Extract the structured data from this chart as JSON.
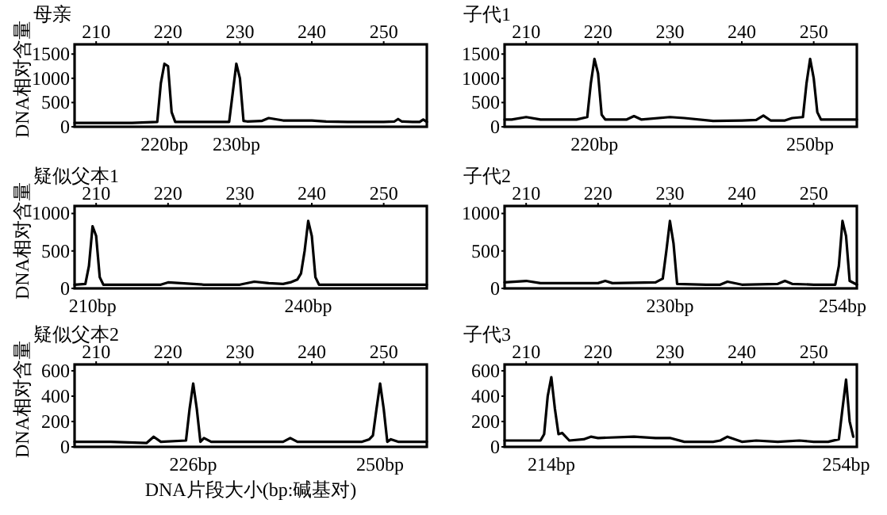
{
  "chart_data": [
    {
      "type": "line",
      "title": "母亲",
      "ylabel": "DNA相对含量",
      "xlim": [
        207,
        256
      ],
      "xticks": [
        210,
        220,
        230,
        240,
        250
      ],
      "ylim": [
        0,
        1700
      ],
      "yticks": [
        0,
        500,
        1000,
        1500
      ],
      "series": [
        {
          "color": "#000000",
          "x": [
            207,
            210,
            215,
            218.5,
            219,
            219.5,
            220,
            220.5,
            221,
            225,
            228.5,
            229,
            229.5,
            230,
            230.5,
            231,
            233,
            234,
            236,
            240,
            242,
            245,
            250,
            251.5,
            252,
            252.5,
            254,
            255,
            255.5,
            256
          ],
          "values": [
            80,
            80,
            80,
            100,
            900,
            1300,
            1250,
            300,
            100,
            100,
            100,
            700,
            1300,
            1000,
            120,
            110,
            120,
            180,
            130,
            130,
            110,
            100,
            100,
            110,
            160,
            110,
            100,
            100,
            150,
            100
          ]
        }
      ],
      "annotations": [
        "220bp",
        "230bp"
      ]
    },
    {
      "type": "line",
      "title": "子代1",
      "xlim": [
        207,
        256
      ],
      "xticks": [
        210,
        220,
        230,
        240,
        250
      ],
      "ylim": [
        0,
        1700
      ],
      "yticks": [
        0,
        500,
        1000,
        1500
      ],
      "series": [
        {
          "color": "#000000",
          "x": [
            207,
            208,
            210,
            212,
            217,
            218.5,
            219,
            219.5,
            220,
            220.5,
            221,
            224,
            225,
            226,
            230,
            232,
            236,
            240,
            242,
            243,
            244,
            246,
            247,
            248.5,
            249,
            249.5,
            250,
            250.5,
            251,
            253,
            256
          ],
          "values": [
            150,
            150,
            200,
            150,
            150,
            200,
            900,
            1400,
            1100,
            250,
            150,
            150,
            220,
            150,
            200,
            180,
            120,
            130,
            140,
            230,
            130,
            130,
            180,
            200,
            900,
            1400,
            1000,
            300,
            150,
            150,
            150
          ]
        }
      ],
      "annotations": [
        "220bp",
        "250bp"
      ]
    },
    {
      "type": "line",
      "title": "疑似父本1",
      "ylabel": "DNA相对含量",
      "xlim": [
        207,
        256
      ],
      "xticks": [
        210,
        220,
        230,
        240,
        250
      ],
      "ylim": [
        0,
        1100
      ],
      "yticks": [
        0,
        500,
        1000
      ],
      "series": [
        {
          "color": "#000000",
          "x": [
            207,
            208.5,
            209,
            209.5,
            210,
            210.5,
            211,
            215,
            219,
            220,
            225,
            230,
            232,
            234,
            236,
            237,
            238,
            238.5,
            239,
            239.5,
            240,
            240.5,
            241,
            243,
            250,
            256
          ],
          "values": [
            50,
            60,
            300,
            830,
            700,
            150,
            50,
            50,
            50,
            80,
            50,
            50,
            90,
            70,
            60,
            80,
            120,
            200,
            500,
            900,
            700,
            150,
            50,
            50,
            50,
            50
          ]
        }
      ],
      "annotations": [
        "210bp",
        "240bp"
      ]
    },
    {
      "type": "line",
      "title": "子代2",
      "xlim": [
        207,
        256
      ],
      "xticks": [
        210,
        220,
        230,
        240,
        250
      ],
      "ylim": [
        0,
        1100
      ],
      "yticks": [
        0,
        500,
        1000
      ],
      "series": [
        {
          "color": "#000000",
          "x": [
            207,
            210,
            212,
            215,
            220,
            221,
            222,
            228,
            229,
            229.5,
            230,
            230.5,
            231,
            235,
            237,
            238,
            240,
            245,
            246,
            247,
            250,
            253,
            253.5,
            254,
            254.5,
            255,
            256
          ],
          "values": [
            80,
            100,
            70,
            70,
            70,
            100,
            70,
            80,
            130,
            500,
            900,
            600,
            60,
            50,
            50,
            90,
            50,
            60,
            100,
            60,
            50,
            50,
            300,
            900,
            700,
            100,
            50
          ]
        }
      ],
      "annotations": [
        "230bp",
        "254bp"
      ]
    },
    {
      "type": "line",
      "title": "疑似父本2",
      "ylabel": "DNA相对含量",
      "xlabel": "DNA片段大小(bp:碱基对)",
      "xlim": [
        207,
        256
      ],
      "xticks": [
        210,
        220,
        230,
        240,
        250
      ],
      "ylim": [
        0,
        650
      ],
      "yticks": [
        0,
        200,
        400,
        600
      ],
      "series": [
        {
          "color": "#000000",
          "x": [
            207,
            212,
            217,
            218,
            219,
            222.5,
            223,
            223.5,
            224,
            224.5,
            225,
            226,
            230,
            236,
            237,
            238,
            242,
            247,
            248,
            248.5,
            249,
            249.5,
            250,
            250.5,
            251,
            252,
            256
          ],
          "values": [
            40,
            40,
            30,
            80,
            40,
            50,
            300,
            500,
            300,
            40,
            70,
            40,
            40,
            40,
            70,
            40,
            40,
            40,
            60,
            90,
            300,
            500,
            300,
            40,
            60,
            40,
            40
          ]
        }
      ],
      "annotations": [
        "226bp",
        "250bp"
      ]
    },
    {
      "type": "line",
      "title": "子代3",
      "xlim": [
        207,
        256
      ],
      "xticks": [
        210,
        220,
        230,
        240,
        250
      ],
      "ylim": [
        0,
        650
      ],
      "yticks": [
        0,
        200,
        400,
        600
      ],
      "series": [
        {
          "color": "#000000",
          "x": [
            207,
            212,
            212.5,
            213,
            213.5,
            214,
            214.5,
            215,
            216,
            218,
            219,
            220,
            225,
            228,
            230,
            232,
            236,
            237,
            238,
            240,
            242,
            245,
            248,
            250,
            252,
            253.5,
            254,
            254.5,
            255,
            255.5
          ],
          "values": [
            50,
            50,
            100,
            400,
            550,
            300,
            100,
            110,
            50,
            60,
            80,
            70,
            80,
            70,
            70,
            40,
            40,
            50,
            80,
            40,
            50,
            40,
            50,
            40,
            40,
            60,
            300,
            530,
            200,
            80
          ]
        }
      ],
      "annotations": [
        "214bp",
        "254bp"
      ]
    }
  ]
}
